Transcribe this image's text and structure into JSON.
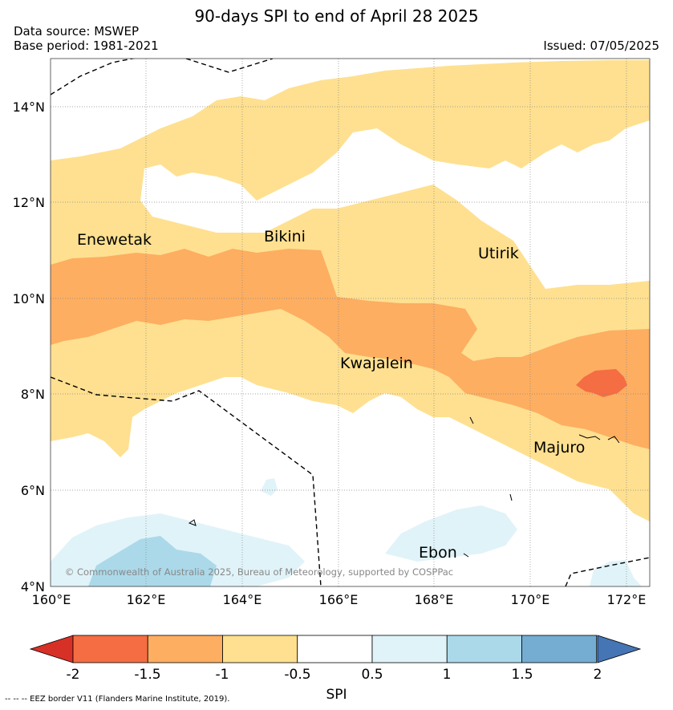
{
  "title": "90-days SPI to end of April 28 2025",
  "data_source": "Data source: MSWEP",
  "base_period": "Base period: 1981-2021",
  "issued": "Issued: 07/05/2025",
  "copyright": "© Commonwealth of Australia 2025, Bureau of Meteorology, supported by COSPPac",
  "footnote": "--  --  -- EEZ border V11 (Flanders Marine Institute, 2019).",
  "colorbar": {
    "label": "SPI",
    "ticks": [
      "-2",
      "-1.5",
      "-1",
      "-0.5",
      "0.5",
      "1",
      "1.5",
      "2"
    ],
    "colors": {
      "below_-2": "#d73027",
      "-2_to_-1.5": "#f46d43",
      "-1.5_to_-1": "#fdae61",
      "-1_to_-0.5": "#fee090",
      "-0.5_to_0.5": "#ffffff",
      "0.5_to_1": "#e0f3f8",
      "1_to_1.5": "#abd9e9",
      "1.5_to_2": "#74add1",
      "above_2": "#4575b4"
    }
  },
  "axes": {
    "lon_labels": [
      "160°E",
      "162°E",
      "164°E",
      "166°E",
      "168°E",
      "170°E",
      "172°E"
    ],
    "lat_labels": [
      "14°N",
      "12°N",
      "10°N",
      "8°N",
      "6°N",
      "4°N"
    ]
  },
  "places": {
    "enewetak": "Enewetak",
    "bikini": "Bikini",
    "utirik": "Utirik",
    "kwajalein": "Kwajalein",
    "majuro": "Majuro",
    "ebon": "Ebon"
  }
}
